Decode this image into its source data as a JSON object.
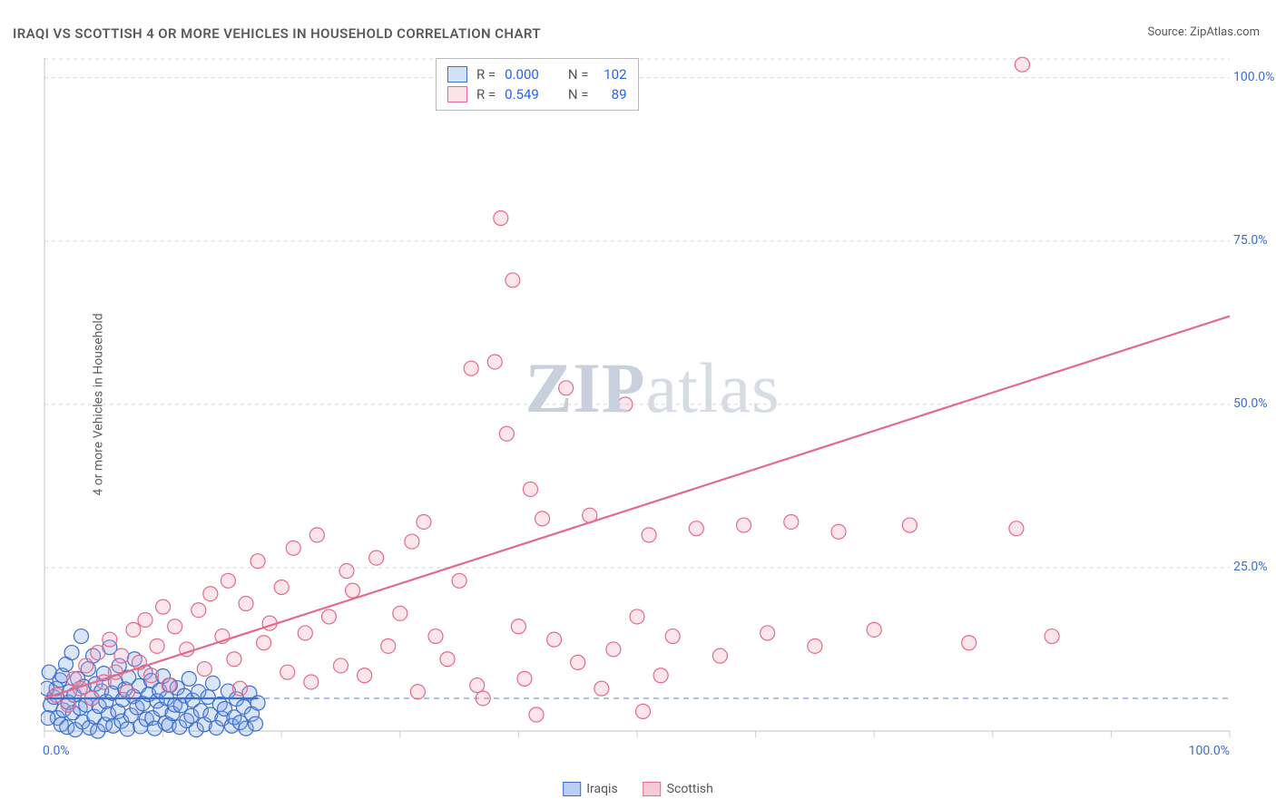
{
  "title": "IRAQI VS SCOTTISH 4 OR MORE VEHICLES IN HOUSEHOLD CORRELATION CHART",
  "source_prefix": "Source: ",
  "source_name": "ZipAtlas.com",
  "y_axis_label": "4 or more Vehicles in Household",
  "watermark_prefix": "ZIP",
  "watermark_suffix": "atlas",
  "chart": {
    "type": "scatter",
    "xlim": [
      0,
      100
    ],
    "ylim": [
      0,
      103
    ],
    "x_ticks": [
      0,
      10,
      20,
      30,
      40,
      50,
      60,
      70,
      80,
      90,
      100
    ],
    "y_ticks_major": [
      25,
      50,
      75,
      100
    ],
    "x_tick_labels": {
      "0": "0.0%",
      "100": "100.0%"
    },
    "y_tick_labels": {
      "25": "25.0%",
      "50": "50.0%",
      "75": "75.0%",
      "100": "100.0%"
    },
    "grid_color": "#d7d7d7",
    "axis_color": "#cfcfcf",
    "zero_line_color": "#6b8fd6",
    "zero_line_dash": "6,5",
    "background": "#ffffff",
    "tick_label_color": "#3b6fcf",
    "marker_radius": 8,
    "marker_stroke_width": 1.2,
    "marker_fill_opacity": 0.28,
    "trend_line_width": 2.2,
    "series": [
      {
        "id": "iraqis",
        "label": "Iraqis",
        "color_stroke": "#3b6fcf",
        "color_fill": "#7da2e5",
        "R_label": "R = ",
        "R": "0.000",
        "N_label": "N = ",
        "N": "102",
        "trend": {
          "x1": 0,
          "y1": 5.0,
          "x2": 18,
          "y2": 5.0
        },
        "points": [
          [
            0.5,
            4.0
          ],
          [
            0.8,
            5.2
          ],
          [
            1.0,
            6.5
          ],
          [
            1.1,
            2.0
          ],
          [
            1.3,
            7.8
          ],
          [
            1.4,
            1.0
          ],
          [
            1.5,
            8.5
          ],
          [
            1.6,
            3.2
          ],
          [
            1.8,
            10.2
          ],
          [
            1.9,
            0.6
          ],
          [
            2.0,
            4.4
          ],
          [
            2.1,
            6.0
          ],
          [
            2.3,
            12.0
          ],
          [
            2.4,
            2.8
          ],
          [
            2.5,
            5.5
          ],
          [
            2.6,
            0.2
          ],
          [
            2.8,
            8.0
          ],
          [
            3.0,
            3.5
          ],
          [
            3.1,
            14.5
          ],
          [
            3.2,
            1.4
          ],
          [
            3.3,
            6.8
          ],
          [
            3.5,
            4.0
          ],
          [
            3.7,
            9.5
          ],
          [
            3.8,
            0.5
          ],
          [
            4.0,
            5.0
          ],
          [
            4.1,
            11.5
          ],
          [
            4.2,
            2.2
          ],
          [
            4.3,
            7.2
          ],
          [
            4.5,
            0.0
          ],
          [
            4.6,
            3.8
          ],
          [
            4.8,
            6.1
          ],
          [
            5.0,
            8.8
          ],
          [
            5.1,
            1.0
          ],
          [
            5.2,
            4.5
          ],
          [
            5.4,
            2.6
          ],
          [
            5.5,
            12.8
          ],
          [
            5.7,
            5.8
          ],
          [
            5.8,
            0.8
          ],
          [
            6.0,
            7.5
          ],
          [
            6.2,
            3.0
          ],
          [
            6.3,
            10.0
          ],
          [
            6.5,
            1.5
          ],
          [
            6.6,
            4.8
          ],
          [
            6.8,
            6.4
          ],
          [
            7.0,
            0.3
          ],
          [
            7.1,
            8.2
          ],
          [
            7.3,
            2.4
          ],
          [
            7.5,
            5.3
          ],
          [
            7.6,
            11.0
          ],
          [
            7.8,
            3.6
          ],
          [
            8.0,
            6.9
          ],
          [
            8.1,
            0.7
          ],
          [
            8.3,
            4.2
          ],
          [
            8.5,
            9.0
          ],
          [
            8.6,
            1.8
          ],
          [
            8.8,
            5.6
          ],
          [
            9.0,
            7.7
          ],
          [
            9.1,
            2.0
          ],
          [
            9.3,
            0.4
          ],
          [
            9.5,
            4.6
          ],
          [
            9.7,
            6.2
          ],
          [
            9.8,
            3.3
          ],
          [
            10.0,
            8.4
          ],
          [
            10.2,
            1.2
          ],
          [
            10.3,
            5.0
          ],
          [
            10.5,
            0.9
          ],
          [
            10.6,
            7.0
          ],
          [
            10.8,
            2.7
          ],
          [
            11.0,
            4.0
          ],
          [
            11.2,
            6.6
          ],
          [
            11.4,
            0.6
          ],
          [
            11.5,
            3.9
          ],
          [
            11.8,
            5.4
          ],
          [
            12.0,
            1.6
          ],
          [
            12.2,
            8.0
          ],
          [
            12.4,
            2.3
          ],
          [
            12.5,
            4.7
          ],
          [
            12.8,
            0.2
          ],
          [
            13.0,
            6.0
          ],
          [
            13.2,
            3.1
          ],
          [
            13.5,
            1.0
          ],
          [
            13.8,
            5.2
          ],
          [
            14.0,
            2.5
          ],
          [
            14.2,
            7.3
          ],
          [
            14.5,
            0.5
          ],
          [
            14.8,
            4.1
          ],
          [
            15.0,
            1.9
          ],
          [
            15.2,
            3.4
          ],
          [
            15.5,
            6.1
          ],
          [
            15.8,
            0.8
          ],
          [
            16.0,
            2.1
          ],
          [
            16.2,
            4.9
          ],
          [
            16.5,
            1.3
          ],
          [
            16.8,
            3.7
          ],
          [
            17.0,
            0.4
          ],
          [
            17.3,
            5.8
          ],
          [
            17.5,
            2.6
          ],
          [
            17.8,
            1.1
          ],
          [
            18.0,
            4.3
          ],
          [
            0.2,
            6.5
          ],
          [
            0.3,
            2.0
          ],
          [
            0.4,
            9.0
          ]
        ]
      },
      {
        "id": "scottish",
        "label": "Scottish",
        "color_stroke": "#e36a8b",
        "color_fill": "#f3a7bb",
        "R_label": "R = ",
        "R": "0.549",
        "N_label": "N = ",
        "N": "89",
        "trend": {
          "x1": 0,
          "y1": 5.0,
          "x2": 100,
          "y2": 63.5
        },
        "points": [
          [
            1.0,
            5.5
          ],
          [
            2.0,
            4.0
          ],
          [
            2.5,
            8.0
          ],
          [
            3.0,
            6.5
          ],
          [
            3.5,
            10.0
          ],
          [
            4.0,
            5.0
          ],
          [
            4.5,
            12.0
          ],
          [
            5.0,
            7.5
          ],
          [
            5.5,
            14.0
          ],
          [
            6.0,
            9.0
          ],
          [
            6.5,
            11.5
          ],
          [
            7.0,
            6.0
          ],
          [
            7.5,
            15.5
          ],
          [
            8.0,
            10.5
          ],
          [
            8.5,
            17.0
          ],
          [
            9.0,
            8.5
          ],
          [
            9.5,
            13.0
          ],
          [
            10.0,
            19.0
          ],
          [
            10.5,
            7.0
          ],
          [
            11.0,
            16.0
          ],
          [
            12.0,
            12.5
          ],
          [
            13.0,
            18.5
          ],
          [
            13.5,
            9.5
          ],
          [
            14.0,
            21.0
          ],
          [
            15.0,
            14.5
          ],
          [
            15.5,
            23.0
          ],
          [
            16.0,
            11.0
          ],
          [
            16.5,
            6.5
          ],
          [
            17.0,
            19.5
          ],
          [
            18.0,
            26.0
          ],
          [
            18.5,
            13.5
          ],
          [
            19.0,
            16.5
          ],
          [
            20.0,
            22.0
          ],
          [
            20.5,
            9.0
          ],
          [
            21.0,
            28.0
          ],
          [
            22.0,
            15.0
          ],
          [
            22.5,
            7.5
          ],
          [
            23.0,
            30.0
          ],
          [
            24.0,
            17.5
          ],
          [
            25.0,
            10.0
          ],
          [
            25.5,
            24.5
          ],
          [
            26.0,
            21.5
          ],
          [
            27.0,
            8.5
          ],
          [
            28.0,
            26.5
          ],
          [
            29.0,
            13.0
          ],
          [
            30.0,
            18.0
          ],
          [
            31.0,
            29.0
          ],
          [
            31.5,
            6.0
          ],
          [
            32.0,
            32.0
          ],
          [
            33.0,
            14.5
          ],
          [
            34.0,
            11.0
          ],
          [
            35.0,
            23.0
          ],
          [
            36.0,
            55.5
          ],
          [
            36.5,
            7.0
          ],
          [
            37.0,
            5.0
          ],
          [
            38.0,
            56.5
          ],
          [
            38.5,
            78.5
          ],
          [
            39.0,
            45.5
          ],
          [
            39.5,
            69.0
          ],
          [
            40.0,
            16.0
          ],
          [
            40.5,
            8.0
          ],
          [
            41.0,
            37.0
          ],
          [
            41.5,
            2.5
          ],
          [
            42.0,
            32.5
          ],
          [
            43.0,
            14.0
          ],
          [
            44.0,
            52.5
          ],
          [
            45.0,
            10.5
          ],
          [
            46.0,
            33.0
          ],
          [
            47.0,
            6.5
          ],
          [
            48.0,
            12.5
          ],
          [
            49.0,
            50.0
          ],
          [
            50.0,
            17.5
          ],
          [
            50.5,
            3.0
          ],
          [
            51.0,
            30.0
          ],
          [
            52.0,
            8.5
          ],
          [
            53.0,
            14.5
          ],
          [
            55.0,
            31.0
          ],
          [
            57.0,
            11.5
          ],
          [
            59.0,
            31.5
          ],
          [
            61.0,
            15.0
          ],
          [
            63.0,
            32.0
          ],
          [
            65.0,
            13.0
          ],
          [
            67.0,
            30.5
          ],
          [
            70.0,
            15.5
          ],
          [
            73.0,
            31.5
          ],
          [
            78.0,
            13.5
          ],
          [
            82.0,
            31.0
          ],
          [
            85.0,
            14.5
          ],
          [
            82.5,
            102.0
          ]
        ]
      }
    ]
  },
  "bottom_legend": [
    {
      "label": "Iraqis",
      "fill": "#b9cef2",
      "stroke": "#3b6fcf"
    },
    {
      "label": "Scottish",
      "fill": "#f6cbd7",
      "stroke": "#e36a8b"
    }
  ]
}
